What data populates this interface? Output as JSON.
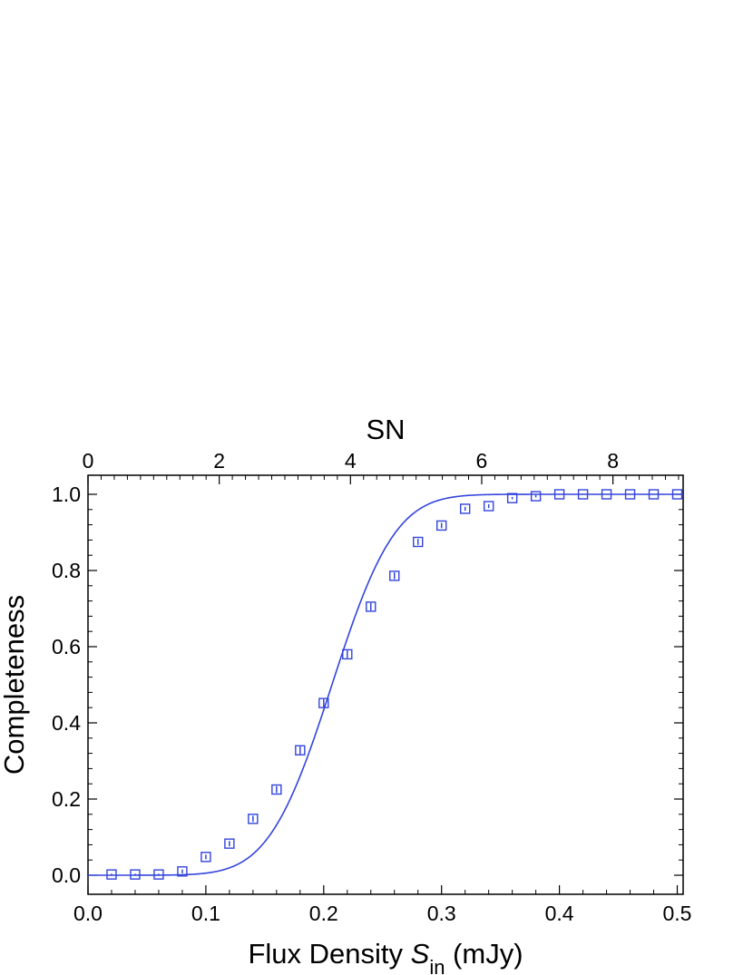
{
  "chart_data": {
    "type": "scatter",
    "xlabel_main": "Flux Density ",
    "xlabel_symbol": "S",
    "xlabel_sub": "in",
    "xlabel_unit": " (mJy)",
    "ylabel": "Completeness",
    "top_axis_label": "SN",
    "xlim": [
      0.0,
      0.505
    ],
    "ylim": [
      -0.05,
      1.05
    ],
    "top_xlim": [
      0,
      9.07
    ],
    "x_ticks": [
      "0.0",
      "0.1",
      "0.2",
      "0.3",
      "0.4",
      "0.5"
    ],
    "y_ticks": [
      "0.0",
      "0.2",
      "0.4",
      "0.6",
      "0.8",
      "1.0"
    ],
    "top_ticks": [
      "0",
      "2",
      "4",
      "6",
      "8"
    ],
    "series_color": "#3344dd",
    "series": [
      {
        "marker": "open-square",
        "x": [
          0.02,
          0.04,
          0.06,
          0.08,
          0.1,
          0.12,
          0.14,
          0.16,
          0.18,
          0.2,
          0.22,
          0.24,
          0.26,
          0.28,
          0.3,
          0.32,
          0.34,
          0.36,
          0.38,
          0.4,
          0.42,
          0.44,
          0.46,
          0.48,
          0.5
        ],
        "y": [
          0.002,
          0.002,
          0.002,
          0.01,
          0.048,
          0.083,
          0.148,
          0.225,
          0.328,
          0.452,
          0.58,
          0.705,
          0.786,
          0.875,
          0.918,
          0.962,
          0.969,
          0.99,
          0.995,
          1.0,
          1.0,
          1.0,
          1.0,
          1.0,
          1.0
        ],
        "yerr": [
          0.002,
          0.002,
          0.002,
          0.005,
          0.006,
          0.007,
          0.008,
          0.009,
          0.01,
          0.01,
          0.01,
          0.01,
          0.009,
          0.008,
          0.007,
          0.005,
          0.005,
          0.003,
          0.003,
          0.001,
          0.001,
          0.001,
          0.001,
          0.001,
          0.001
        ]
      }
    ],
    "fit_curve": {
      "model": "erf",
      "center": 0.207,
      "width": 0.0595
    }
  }
}
